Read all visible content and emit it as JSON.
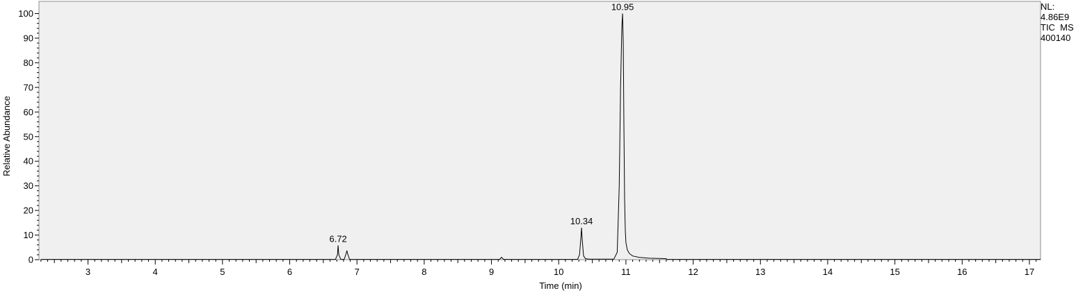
{
  "side_info": [
    "NL:",
    "4.86E9",
    "TIC  MS",
    "400140"
  ],
  "chart_data": {
    "type": "line",
    "xlabel": "Time (min)",
    "ylabel": "Relative Abundance",
    "xlim": [
      2.3,
      17.2
    ],
    "ylim": [
      0,
      100
    ],
    "x_ticks": [
      3,
      4,
      5,
      6,
      7,
      8,
      9,
      10,
      11,
      12,
      13,
      14,
      15,
      16,
      17
    ],
    "y_ticks": [
      0,
      10,
      20,
      30,
      40,
      50,
      60,
      70,
      80,
      90,
      100
    ],
    "grid": false,
    "background": "#f0f0f0",
    "line_color": "#000000",
    "series": [
      {
        "x": [
          2.3,
          6.68,
          6.71,
          6.72,
          6.73,
          6.76,
          6.81,
          6.84,
          6.85,
          6.86,
          6.89,
          9.12,
          9.15,
          9.18,
          10.28,
          10.31,
          10.33,
          10.34,
          10.35,
          10.37,
          10.4,
          10.45,
          10.82,
          10.87,
          10.9,
          10.92,
          10.94,
          10.95,
          10.96,
          10.97,
          10.98,
          10.99,
          11.0,
          11.02,
          11.05,
          11.1,
          11.2,
          11.35,
          11.5,
          11.6,
          11.61,
          12.0,
          17.2
        ],
        "y": [
          0.1,
          0.1,
          2.0,
          5.8,
          2.0,
          0.1,
          0.1,
          2.5,
          3.7,
          2.5,
          0.1,
          0.1,
          1.0,
          0.1,
          0.1,
          2.0,
          9.0,
          13.0,
          8.0,
          1.5,
          0.4,
          0.2,
          0.2,
          3.0,
          30.0,
          70.0,
          95.0,
          100.0,
          88.0,
          55.0,
          25.0,
          12.0,
          7.0,
          4.0,
          2.5,
          1.5,
          0.9,
          0.6,
          0.5,
          0.4,
          0.1,
          0.1,
          0.1
        ]
      }
    ],
    "annotations": [
      {
        "x": 6.72,
        "y": 5.8,
        "text": "6.72"
      },
      {
        "x": 10.34,
        "y": 13.0,
        "text": "10.34"
      },
      {
        "x": 10.95,
        "y": 100.0,
        "text": "10.95"
      }
    ]
  }
}
